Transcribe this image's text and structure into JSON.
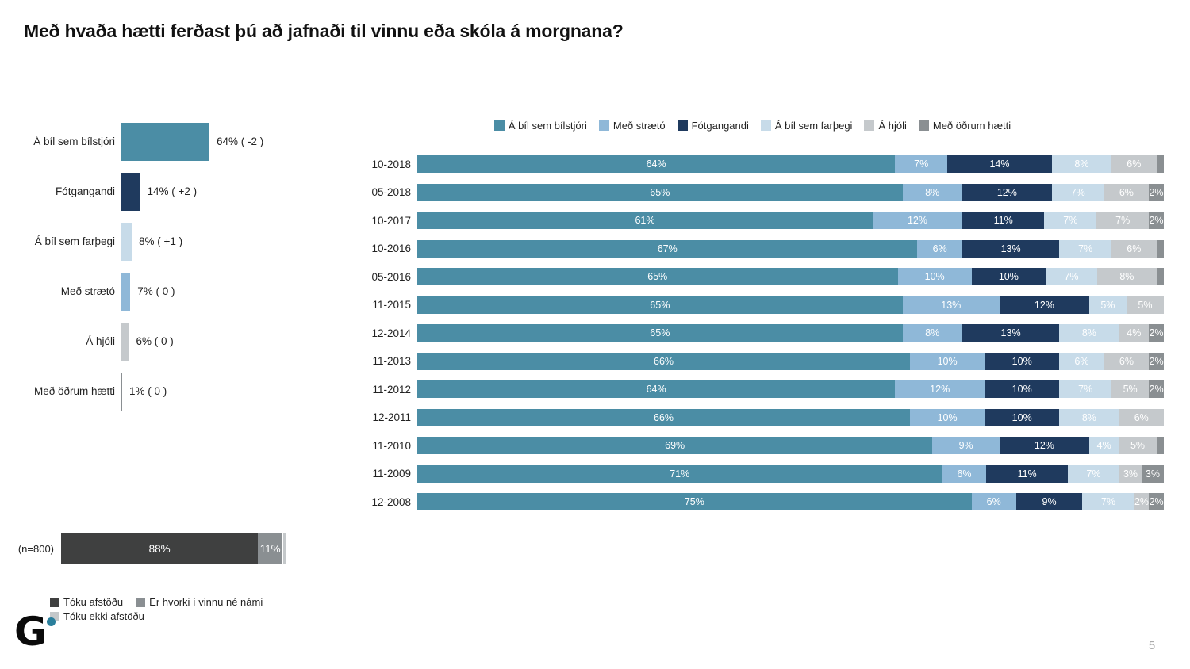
{
  "title": "Með hvaða hætti ferðast þú að jafnaði til vinnu eða skóla á morgnana?",
  "page_number": "5",
  "logo_text": "G",
  "colors": {
    "series": [
      "#4B8DA5",
      "#8FB8D8",
      "#1F3A5E",
      "#C7DBE9",
      "#C5C9CC",
      "#8A8F92"
    ],
    "answer": [
      "#3F4040",
      "#8A8F92",
      "#C4C8CA"
    ],
    "logo_dot": "#2A7F9C"
  },
  "chart_data": [
    {
      "type": "bar",
      "name": "latest-wave-summary",
      "categories": [
        "Á bíl sem bílstjóri",
        "Fótgangandi",
        "Á bíl sem farþegi",
        "Með strætó",
        "Á hjóli",
        "Með öðrum hætti"
      ],
      "values": [
        64,
        14,
        8,
        7,
        6,
        1
      ],
      "value_labels": [
        "64% ( -2 )",
        "14% ( +2 )",
        "8% ( +1 )",
        "7% ( 0 )",
        "6% ( 0 )",
        "1% ( 0 )"
      ],
      "color_indices": [
        0,
        2,
        3,
        1,
        4,
        5
      ],
      "xlim": [
        0,
        100
      ]
    },
    {
      "type": "stacked-bar",
      "name": "trend-by-wave",
      "legend": [
        "Á bíl sem bílstjóri",
        "Með strætó",
        "Fótgangandi",
        "Á bíl sem farþegi",
        "Á hjóli",
        "Með öðrum hætti"
      ],
      "legend_position": "top-center",
      "categories": [
        "10-2018",
        "05-2018",
        "10-2017",
        "10-2016",
        "05-2016",
        "11-2015",
        "12-2014",
        "11-2013",
        "11-2012",
        "12-2011",
        "11-2010",
        "11-2009",
        "12-2008"
      ],
      "rows": [
        {
          "values": [
            64,
            7,
            14,
            8,
            6,
            1
          ],
          "labels": [
            "64%",
            "7%",
            "14%",
            "8%",
            "6%",
            ""
          ]
        },
        {
          "values": [
            65,
            8,
            12,
            7,
            6,
            2
          ],
          "labels": [
            "65%",
            "8%",
            "12%",
            "7%",
            "6%",
            "2%"
          ]
        },
        {
          "values": [
            61,
            12,
            11,
            7,
            7,
            2
          ],
          "labels": [
            "61%",
            "12%",
            "11%",
            "7%",
            "7%",
            "2%"
          ]
        },
        {
          "values": [
            67,
            6,
            13,
            7,
            6,
            1
          ],
          "labels": [
            "67%",
            "6%",
            "13%",
            "7%",
            "6%",
            ""
          ]
        },
        {
          "values": [
            65,
            10,
            10,
            7,
            8,
            1
          ],
          "labels": [
            "65%",
            "10%",
            "10%",
            "7%",
            "8%",
            ""
          ]
        },
        {
          "values": [
            65,
            13,
            12,
            5,
            5,
            0
          ],
          "labels": [
            "65%",
            "13%",
            "12%",
            "5%",
            "5%",
            ""
          ]
        },
        {
          "values": [
            65,
            8,
            13,
            8,
            4,
            2
          ],
          "labels": [
            "65%",
            "8%",
            "13%",
            "8%",
            "4%",
            "2%"
          ]
        },
        {
          "values": [
            66,
            10,
            10,
            6,
            6,
            2
          ],
          "labels": [
            "66%",
            "10%",
            "10%",
            "6%",
            "6%",
            "2%"
          ]
        },
        {
          "values": [
            64,
            12,
            10,
            7,
            5,
            2
          ],
          "labels": [
            "64%",
            "12%",
            "10%",
            "7%",
            "5%",
            "2%"
          ]
        },
        {
          "values": [
            66,
            10,
            10,
            8,
            6,
            0
          ],
          "labels": [
            "66%",
            "10%",
            "10%",
            "8%",
            "6%",
            ""
          ]
        },
        {
          "values": [
            69,
            9,
            12,
            4,
            5,
            1
          ],
          "labels": [
            "69%",
            "9%",
            "12%",
            "4%",
            "5%",
            ""
          ]
        },
        {
          "values": [
            71,
            6,
            11,
            7,
            3,
            3
          ],
          "labels": [
            "71%",
            "6%",
            "11%",
            "7%",
            "3%",
            "3%"
          ]
        },
        {
          "values": [
            75,
            6,
            9,
            7,
            2,
            2
          ],
          "labels": [
            "75%",
            "6%",
            "9%",
            "7%",
            "2%",
            "2%"
          ]
        }
      ]
    },
    {
      "type": "stacked-bar",
      "name": "response-rate",
      "n_label": "(n=800)",
      "values": [
        88,
        11,
        1
      ],
      "labels": [
        "88%",
        "11%",
        ""
      ],
      "legend": [
        "Tóku afstöðu",
        "Er hvorki í vinnu né námi",
        "Tóku ekki afstöðu"
      ]
    }
  ]
}
